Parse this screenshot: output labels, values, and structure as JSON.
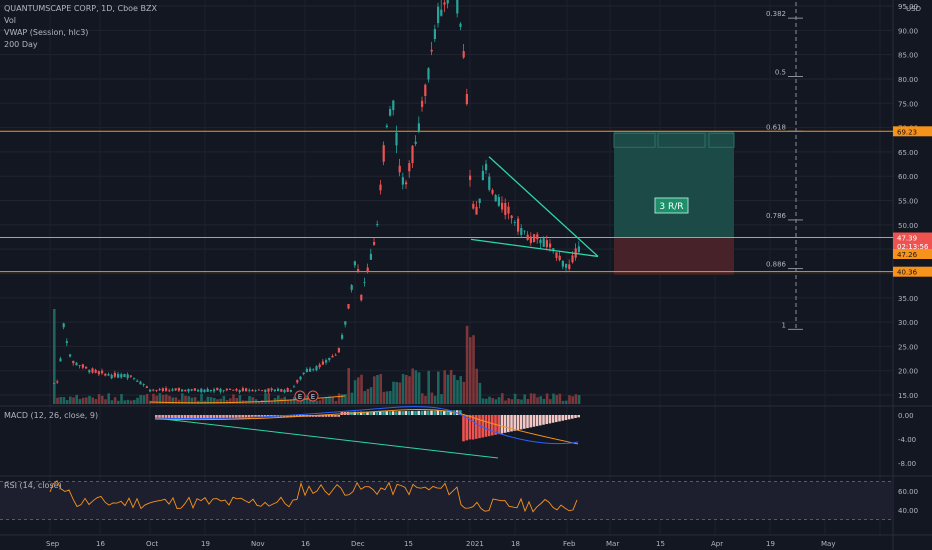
{
  "legend": {
    "symbol_line": "QUANTUMSCAPE CORP, 1D, Cboe BZX",
    "vol": "Vol",
    "vwap": "VWAP (Session, hlc3)",
    "ma": "200 Day"
  },
  "price_axis": {
    "currency": "USD",
    "ticks": [
      "95.00",
      "90.00",
      "85.00",
      "80.00",
      "75.00",
      "70.00",
      "65.00",
      "60.00",
      "55.00",
      "50.00",
      "45.00",
      "40.00",
      "35.00",
      "30.00",
      "25.00",
      "20.00",
      "15.00"
    ],
    "tick_values": [
      95,
      90,
      85,
      80,
      75,
      70,
      65,
      60,
      55,
      50,
      45,
      40,
      35,
      30,
      25,
      20,
      15
    ],
    "badges": [
      {
        "label": "69.23",
        "value": 69.23,
        "bg": "#f7931a",
        "fg": "#131722"
      },
      {
        "label": "47.39",
        "value": 47.39,
        "bg": "#ef5350",
        "fg": "#ffffff"
      },
      {
        "label": "02:13:56",
        "value": 45.6,
        "bg": "#ef5350",
        "fg": "#ffffff"
      },
      {
        "label": "47.26",
        "value": 44.0,
        "bg": "#f7931a",
        "fg": "#131722"
      },
      {
        "label": "40.36",
        "value": 40.36,
        "bg": "#f7931a",
        "fg": "#131722"
      }
    ]
  },
  "horizontal_lines": [
    {
      "name": "resistance-line-69",
      "value": 69.23,
      "color": "#f7931a"
    },
    {
      "name": "level-line-47",
      "value": 47.39,
      "color": "#f7931a"
    },
    {
      "name": "support-line-40",
      "value": 40.36,
      "color": "#f7931a"
    }
  ],
  "fib_levels": [
    {
      "label": "0.382",
      "value": 92.5
    },
    {
      "label": "0.5",
      "value": 80.5
    },
    {
      "label": "0.618",
      "value": 69.23
    },
    {
      "label": "0.786",
      "value": 51.0
    },
    {
      "label": "0.886",
      "value": 41.0
    },
    {
      "label": "1",
      "value": 28.5
    }
  ],
  "position_tool": {
    "label": "3 R/R",
    "target": 69.23,
    "entry": 47.39,
    "stop": 40.36
  },
  "earnings_markers": [
    "E",
    "E"
  ],
  "macd": {
    "title": "MACD (12, 26, close, 9)",
    "ticks": [
      "0.00",
      "-4.00",
      "-8.00"
    ],
    "tick_values": [
      0,
      -4,
      -8
    ]
  },
  "rsi": {
    "title": "RSI (14, close)",
    "ticks": [
      "60.00",
      "40.00"
    ],
    "tick_values": [
      60,
      40
    ],
    "band_top": 70,
    "band_bottom": 30
  },
  "time_axis": {
    "labels": [
      "Sep",
      "16",
      "Oct",
      "19",
      "Nov",
      "16",
      "Dec",
      "15",
      "2021",
      "18",
      "Feb",
      "Mar",
      "15",
      "Apr",
      "19",
      "May"
    ]
  },
  "colors": {
    "up": "#26a69a",
    "down": "#ef5350",
    "orange": "#f7931a",
    "wedge": "#2bd6a8",
    "target_zone": "#1b4d4a",
    "stop_zone": "#4a2329"
  }
}
